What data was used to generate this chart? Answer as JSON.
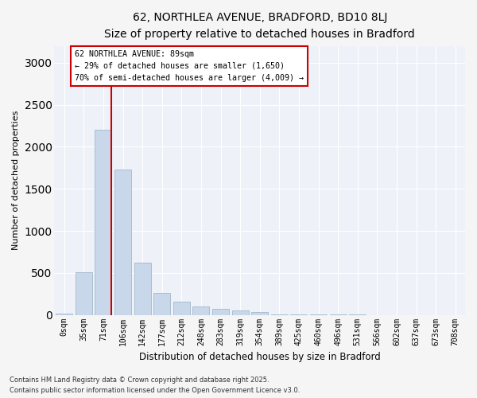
{
  "title": "62, NORTHLEA AVENUE, BRADFORD, BD10 8LJ",
  "subtitle": "Size of property relative to detached houses in Bradford",
  "xlabel": "Distribution of detached houses by size in Bradford",
  "ylabel": "Number of detached properties",
  "bar_color": "#c8d8ea",
  "bar_edge_color": "#a0b8cc",
  "background_color": "#eef2f8",
  "fig_background": "#f5f5f5",
  "categories": [
    "0sqm",
    "35sqm",
    "71sqm",
    "106sqm",
    "142sqm",
    "177sqm",
    "212sqm",
    "248sqm",
    "283sqm",
    "319sqm",
    "354sqm",
    "389sqm",
    "425sqm",
    "460sqm",
    "496sqm",
    "531sqm",
    "566sqm",
    "602sqm",
    "637sqm",
    "673sqm",
    "708sqm"
  ],
  "values": [
    15,
    510,
    2200,
    1730,
    620,
    260,
    155,
    100,
    70,
    55,
    30,
    10,
    5,
    5,
    2,
    2,
    1,
    1,
    0,
    0,
    0
  ],
  "vline_color": "#cc0000",
  "vline_x_index": 2.42,
  "annotation_text": "62 NORTHLEA AVENUE: 89sqm\n← 29% of detached houses are smaller (1,650)\n70% of semi-detached houses are larger (4,009) →",
  "annotation_box_color": "#ffffff",
  "annotation_box_edge": "#cc0000",
  "ylim": [
    0,
    3200
  ],
  "yticks": [
    0,
    500,
    1000,
    1500,
    2000,
    2500,
    3000
  ],
  "footer_line1": "Contains HM Land Registry data © Crown copyright and database right 2025.",
  "footer_line2": "Contains public sector information licensed under the Open Government Licence v3.0."
}
